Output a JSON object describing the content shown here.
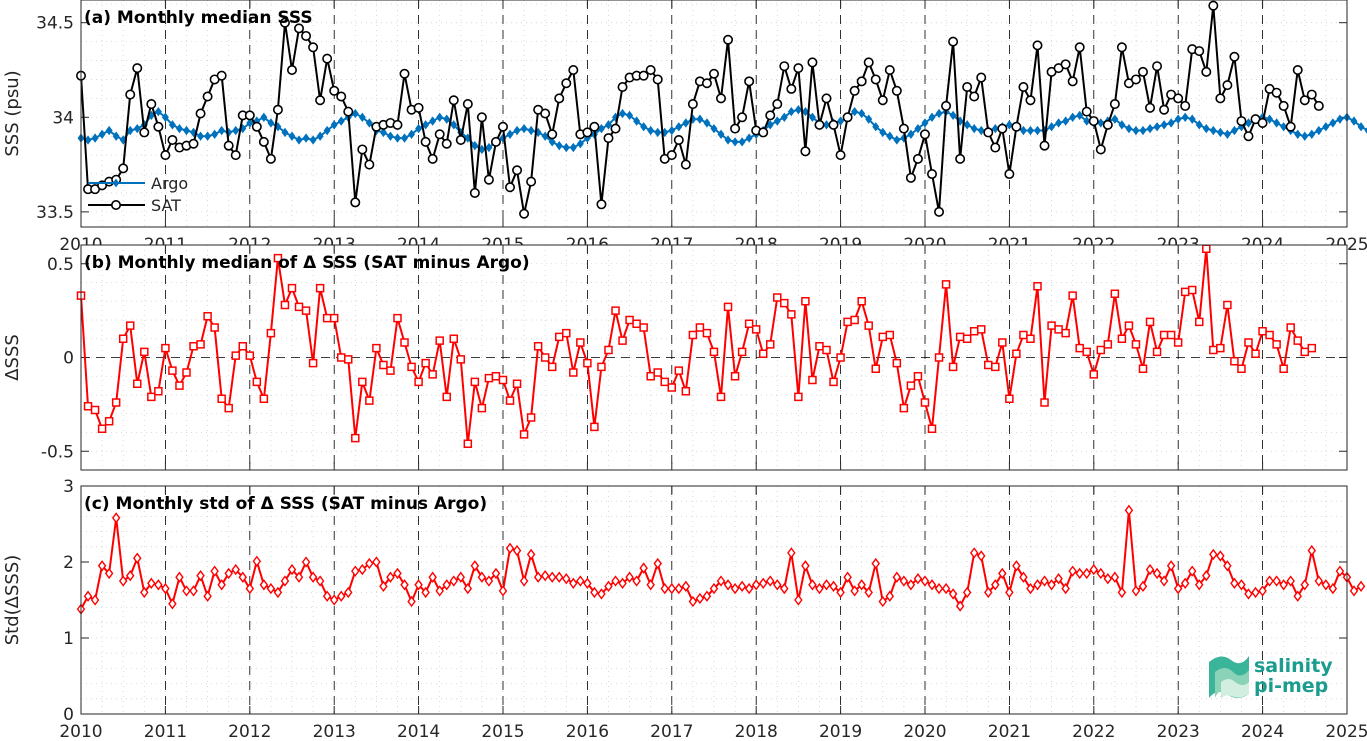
{
  "chart_data": [
    {
      "type": "line",
      "title": "(a) Monthly median SSS",
      "ylabel": "SSS (psu)",
      "xlabel": "",
      "xlim": [
        2010,
        2025
      ],
      "ylim": [
        33.42,
        34.62
      ],
      "yticks": [
        33.5,
        34,
        34.5
      ],
      "ytick_labels": [
        "33.5",
        "34",
        "34.5"
      ],
      "xticks": [
        2010,
        2011,
        2012,
        2013,
        2014,
        2015,
        2016,
        2017,
        2018,
        2019,
        2020,
        2021,
        2022,
        2023,
        2024,
        2025
      ],
      "xtick_labels": [
        "2010",
        "2011",
        "2012",
        "2013",
        "2014",
        "2015",
        "2016",
        "2017",
        "2018",
        "2019",
        "2020",
        "2021",
        "2022",
        "2023",
        "2024",
        "2025"
      ],
      "grid": true,
      "legend": {
        "placement": "bottom-left"
      },
      "series": [
        {
          "name": "Argo",
          "color": "#0072BD",
          "marker": "diamond",
          "x_start": 2010.0,
          "x_step": 0.08333,
          "values": [
            33.89,
            33.88,
            33.89,
            33.91,
            33.93,
            33.9,
            33.88,
            33.93,
            33.94,
            33.96,
            34.01,
            34.03,
            34.0,
            33.96,
            33.94,
            33.93,
            33.92,
            33.9,
            33.9,
            33.91,
            33.93,
            33.92,
            33.93,
            33.94,
            33.97,
            33.98,
            34.0,
            33.97,
            33.95,
            33.92,
            33.9,
            33.88,
            33.89,
            33.88,
            33.9,
            33.93,
            33.96,
            33.98,
            34.0,
            34.02,
            34.0,
            33.97,
            33.93,
            33.92,
            33.9,
            33.89,
            33.89,
            33.91,
            33.94,
            33.96,
            33.98,
            34.0,
            33.99,
            33.96,
            33.92,
            33.89,
            33.85,
            33.83,
            33.84,
            33.87,
            33.89,
            33.91,
            33.93,
            33.94,
            33.93,
            33.92,
            33.9,
            33.87,
            33.85,
            33.84,
            33.84,
            33.86,
            33.89,
            33.91,
            33.94,
            33.96,
            34.0,
            34.02,
            34.01,
            33.98,
            33.95,
            33.93,
            33.92,
            33.92,
            33.93,
            33.95,
            33.97,
            33.99,
            33.99,
            33.97,
            33.94,
            33.91,
            33.88,
            33.87,
            33.87,
            33.89,
            33.91,
            33.93,
            33.96,
            33.98,
            34.0,
            34.03,
            34.04,
            34.03,
            34.0,
            33.97,
            33.96,
            33.97,
            33.98,
            34.0,
            34.03,
            34.02,
            33.99,
            33.95,
            33.92,
            33.9,
            33.88,
            33.89,
            33.91,
            33.94,
            33.97,
            34.0,
            34.02,
            34.03,
            34.01,
            33.98,
            33.96,
            33.94,
            33.93,
            33.93,
            33.94,
            33.95,
            33.96,
            33.95,
            33.93,
            33.93,
            33.93,
            33.93,
            33.95,
            33.97,
            33.98,
            34.0,
            34.01,
            33.98,
            33.97,
            33.97,
            33.98,
            33.99,
            33.96,
            33.94,
            33.93,
            33.93,
            33.94,
            33.95,
            33.96,
            33.97,
            33.99,
            34.0,
            33.99,
            33.96,
            33.94,
            33.93,
            33.92,
            33.91,
            33.93,
            33.95,
            33.97,
            33.99,
            34.0,
            33.99,
            33.97,
            33.95,
            33.93,
            33.91,
            33.9,
            33.91,
            33.93,
            33.95,
            33.97,
            33.99,
            34.0,
            33.98,
            33.95,
            33.93,
            33.92,
            33.9,
            33.89,
            33.9,
            33.92,
            33.95,
            33.97,
            33.99,
            34.0,
            33.98
          ]
        },
        {
          "name": "SAT",
          "color": "#000000",
          "marker": "circle",
          "x_start": 2010.0,
          "x_step": 0.08333,
          "values": [
            34.22,
            33.62,
            33.62,
            33.64,
            33.66,
            33.67,
            33.73,
            34.12,
            34.26,
            33.92,
            34.07,
            33.95,
            33.8,
            33.88,
            33.84,
            33.85,
            33.86,
            34.02,
            34.11,
            34.2,
            34.22,
            33.85,
            33.8,
            34.01,
            34.01,
            33.95,
            33.87,
            33.78,
            34.04,
            34.5,
            34.25,
            34.47,
            34.43,
            34.37,
            34.09,
            34.31,
            34.14,
            34.11,
            34.03,
            33.55,
            33.83,
            33.75,
            33.95,
            33.96,
            33.97,
            33.96,
            34.23,
            34.04,
            34.05,
            33.87,
            33.78,
            33.91,
            33.86,
            34.09,
            33.88,
            34.07,
            33.6,
            34.0,
            33.67,
            33.87,
            33.95,
            33.63,
            33.72,
            33.49,
            33.66,
            34.04,
            34.02,
            33.91,
            34.1,
            34.18,
            34.25,
            33.91,
            33.92,
            33.95,
            33.54,
            33.89,
            33.94,
            34.16,
            34.21,
            34.22,
            34.22,
            34.25,
            34.2,
            33.78,
            33.8,
            33.88,
            33.75,
            34.07,
            34.19,
            34.18,
            34.23,
            34.1,
            34.41,
            33.94,
            34.0,
            34.19,
            33.93,
            33.92,
            34.01,
            34.07,
            34.27,
            34.15,
            34.26,
            33.82,
            34.29,
            33.96,
            34.1,
            33.96,
            33.8,
            34.0,
            34.14,
            34.19,
            34.29,
            34.2,
            34.09,
            34.25,
            34.14,
            33.94,
            33.68,
            33.78,
            33.91,
            33.7,
            33.5,
            34.06,
            34.4,
            33.78,
            34.16,
            34.11,
            34.21,
            33.92,
            33.84,
            33.94,
            33.7,
            33.95,
            34.16,
            34.09,
            34.38,
            33.85,
            34.24,
            34.26,
            34.28,
            34.19,
            34.37,
            34.03,
            33.98,
            33.83,
            33.96,
            34.07,
            34.37,
            34.18,
            34.2,
            34.24,
            34.05,
            34.27,
            34.04,
            34.12,
            34.1,
            34.06,
            34.36,
            34.35,
            34.24,
            34.59,
            34.1,
            34.17,
            34.32,
            33.98,
            33.9,
            33.99,
            33.97,
            34.15,
            34.13,
            34.06,
            33.95,
            34.25,
            34.09,
            34.12,
            34.06
          ]
        }
      ]
    },
    {
      "type": "line",
      "title": "(b) Monthly median of Δ SSS (SAT minus Argo)",
      "ylabel": "ΔSSS",
      "xlabel": "",
      "xlim": [
        2010,
        2025
      ],
      "ylim": [
        -0.6,
        0.6
      ],
      "yticks": [
        -0.5,
        0,
        0.5
      ],
      "ytick_labels": [
        "-0.5",
        "0",
        "0.5"
      ],
      "xticks": [
        2010,
        2011,
        2012,
        2013,
        2014,
        2015,
        2016,
        2017,
        2018,
        2019,
        2020,
        2021,
        2022,
        2023,
        2024,
        2025
      ],
      "grid": true,
      "zero_line": true,
      "series": [
        {
          "name": "",
          "color": "#FF0000",
          "marker": "square",
          "x_start": 2010.0,
          "x_step": 0.08333,
          "values": [
            0.33,
            -0.26,
            -0.28,
            -0.38,
            -0.34,
            -0.24,
            0.1,
            0.17,
            -0.14,
            0.03,
            -0.21,
            -0.18,
            0.05,
            -0.07,
            -0.15,
            -0.08,
            0.06,
            0.07,
            0.22,
            0.16,
            -0.22,
            -0.27,
            0.01,
            0.06,
            0.01,
            -0.13,
            -0.22,
            0.13,
            0.53,
            0.28,
            0.37,
            0.27,
            0.25,
            -0.03,
            0.37,
            0.21,
            0.21,
            0.0,
            -0.01,
            -0.43,
            -0.13,
            -0.23,
            0.05,
            -0.04,
            -0.07,
            0.21,
            0.08,
            -0.05,
            -0.13,
            -0.03,
            -0.09,
            0.09,
            -0.21,
            0.1,
            -0.01,
            -0.46,
            -0.13,
            -0.27,
            -0.11,
            -0.1,
            -0.12,
            -0.23,
            -0.14,
            -0.41,
            -0.32,
            0.06,
            0.0,
            -0.05,
            0.11,
            0.13,
            -0.08,
            0.08,
            -0.03,
            -0.37,
            -0.05,
            0.04,
            0.25,
            0.09,
            0.2,
            0.18,
            0.16,
            -0.1,
            -0.08,
            -0.13,
            -0.16,
            -0.07,
            -0.18,
            0.12,
            0.16,
            0.13,
            0.03,
            -0.21,
            0.27,
            -0.1,
            0.03,
            0.18,
            0.15,
            0.02,
            0.07,
            0.32,
            0.29,
            0.23,
            -0.21,
            0.3,
            -0.12,
            0.06,
            0.04,
            -0.13,
            0.0,
            0.19,
            0.2,
            0.3,
            0.17,
            -0.06,
            0.11,
            0.12,
            -0.03,
            -0.27,
            -0.15,
            -0.1,
            -0.24,
            -0.38,
            0.0,
            0.39,
            -0.05,
            0.11,
            0.1,
            0.14,
            0.15,
            -0.04,
            -0.05,
            0.08,
            -0.22,
            0.02,
            0.12,
            0.1,
            0.38,
            -0.24,
            0.17,
            0.15,
            0.13,
            0.33,
            0.05,
            0.03,
            -0.09,
            0.04,
            0.07,
            0.34,
            0.1,
            0.17,
            0.07,
            -0.06,
            0.19,
            0.03,
            0.12,
            0.12,
            0.08,
            0.35,
            0.36,
            0.19,
            0.58,
            0.04,
            0.05,
            0.28,
            -0.02,
            -0.06,
            0.08,
            0.02,
            0.14,
            0.12,
            0.07,
            -0.06,
            0.16,
            0.09,
            0.03,
            0.05
          ]
        }
      ]
    },
    {
      "type": "line",
      "title": "(c) Monthly std of Δ SSS (SAT minus Argo)",
      "ylabel": "Std(ΔSSS)",
      "xlabel": "",
      "xlim": [
        2010,
        2025
      ],
      "ylim": [
        0,
        3
      ],
      "yticks": [
        0,
        1,
        2,
        3
      ],
      "ytick_labels": [
        "0",
        "1",
        "2",
        "3"
      ],
      "xticks": [
        2010,
        2011,
        2012,
        2013,
        2014,
        2015,
        2016,
        2017,
        2018,
        2019,
        2020,
        2021,
        2022,
        2023,
        2024,
        2025
      ],
      "xtick_labels": [
        "2010",
        "2011",
        "2012",
        "2013",
        "2014",
        "2015",
        "2016",
        "2017",
        "2018",
        "2019",
        "2020",
        "2021",
        "2022",
        "2023",
        "2024",
        "2025"
      ],
      "grid": true,
      "series": [
        {
          "name": "",
          "color": "#FF0000",
          "marker": "diamond",
          "x_start": 2010.0,
          "x_step": 0.08333,
          "values": [
            1.38,
            1.55,
            1.5,
            1.95,
            1.85,
            2.58,
            1.75,
            1.82,
            2.05,
            1.6,
            1.72,
            1.7,
            1.65,
            1.45,
            1.8,
            1.62,
            1.62,
            1.82,
            1.55,
            1.88,
            1.7,
            1.85,
            1.9,
            1.8,
            1.65,
            2.01,
            1.7,
            1.65,
            1.6,
            1.75,
            1.9,
            1.8,
            2.0,
            1.8,
            1.75,
            1.55,
            1.5,
            1.55,
            1.6,
            1.88,
            1.9,
            1.98,
            2.0,
            1.68,
            1.8,
            1.85,
            1.7,
            1.48,
            1.7,
            1.6,
            1.8,
            1.62,
            1.7,
            1.75,
            1.8,
            1.65,
            1.95,
            1.8,
            1.75,
            1.85,
            1.62,
            2.18,
            2.15,
            1.75,
            2.1,
            1.8,
            1.82,
            1.8,
            1.8,
            1.78,
            1.72,
            1.75,
            1.72,
            1.6,
            1.58,
            1.68,
            1.75,
            1.72,
            1.8,
            1.75,
            1.92,
            1.7,
            1.98,
            1.65,
            1.65,
            1.65,
            1.68,
            1.48,
            1.52,
            1.55,
            1.65,
            1.75,
            1.7,
            1.65,
            1.68,
            1.65,
            1.7,
            1.72,
            1.75,
            1.7,
            1.65,
            2.12,
            1.5,
            1.95,
            1.7,
            1.65,
            1.7,
            1.68,
            1.6,
            1.8,
            1.62,
            1.7,
            1.6,
            1.98,
            1.48,
            1.55,
            1.8,
            1.75,
            1.7,
            1.78,
            1.75,
            1.7,
            1.65,
            1.65,
            1.58,
            1.42,
            1.6,
            2.12,
            2.08,
            1.6,
            1.7,
            1.85,
            1.6,
            1.95,
            1.8,
            1.65,
            1.7,
            1.75,
            1.7,
            1.78,
            1.65,
            1.88,
            1.85,
            1.85,
            1.9,
            1.85,
            1.78,
            1.8,
            1.6,
            2.68,
            1.62,
            1.68,
            1.9,
            1.85,
            1.75,
            1.95,
            1.65,
            1.72,
            1.88,
            1.7,
            1.82,
            2.1,
            2.08,
            1.95,
            1.72,
            1.7,
            1.58,
            1.6,
            1.62,
            1.75,
            1.75,
            1.7,
            1.75,
            1.55,
            1.7,
            2.15,
            1.75,
            1.7,
            1.65,
            1.88,
            1.8,
            1.62,
            1.68
          ]
        }
      ]
    }
  ],
  "legend": {
    "argo_label": "Argo",
    "sat_label": "SAT"
  },
  "logo": {
    "line1": "salinity",
    "line2": "pi-mep",
    "color": "#1a9c8f"
  }
}
